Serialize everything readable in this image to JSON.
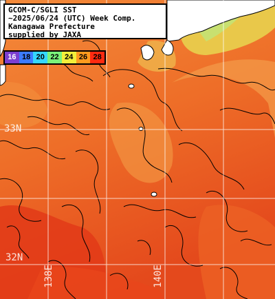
{
  "title": {
    "lines": [
      "GCOM-C/SGLI SST",
      "~2025/06/24 (UTC) Week Comp.",
      "Kanagawa Prefecture",
      "supplied by JAXA"
    ]
  },
  "color_scale": {
    "labels": [
      "16",
      "18",
      "20",
      "22",
      "24",
      "26",
      "28"
    ],
    "colors": [
      "#7b3fd0",
      "#3d7bff",
      "#35d7ff",
      "#7af27a",
      "#f3ee3a",
      "#ff9a1e",
      "#ff2a10"
    ]
  },
  "grid_labels": {
    "lat_upper": "33N",
    "lat_lower": "32N",
    "lon_left": "138E",
    "lon_right": "140E"
  },
  "colors": {
    "land": "#ffffff",
    "grid": "#ffffff",
    "contour": "#000000",
    "sea_warm": "#ee6a25",
    "sea_hot": "#e83a1a",
    "sea_cool": "#f39a45",
    "sea_coastal": "#e9d050"
  }
}
